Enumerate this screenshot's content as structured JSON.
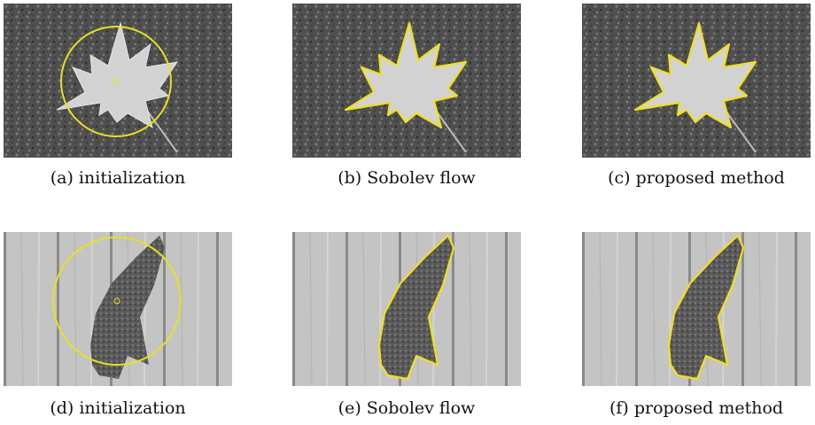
{
  "panels": [
    {
      "caption": "(a) initialization"
    },
    {
      "caption": "(b) Sobolev flow"
    },
    {
      "caption": "(c) proposed method"
    },
    {
      "caption": "(d) initialization"
    },
    {
      "caption": "(e) Sobolev flow"
    },
    {
      "caption": "(f) proposed method"
    }
  ]
}
